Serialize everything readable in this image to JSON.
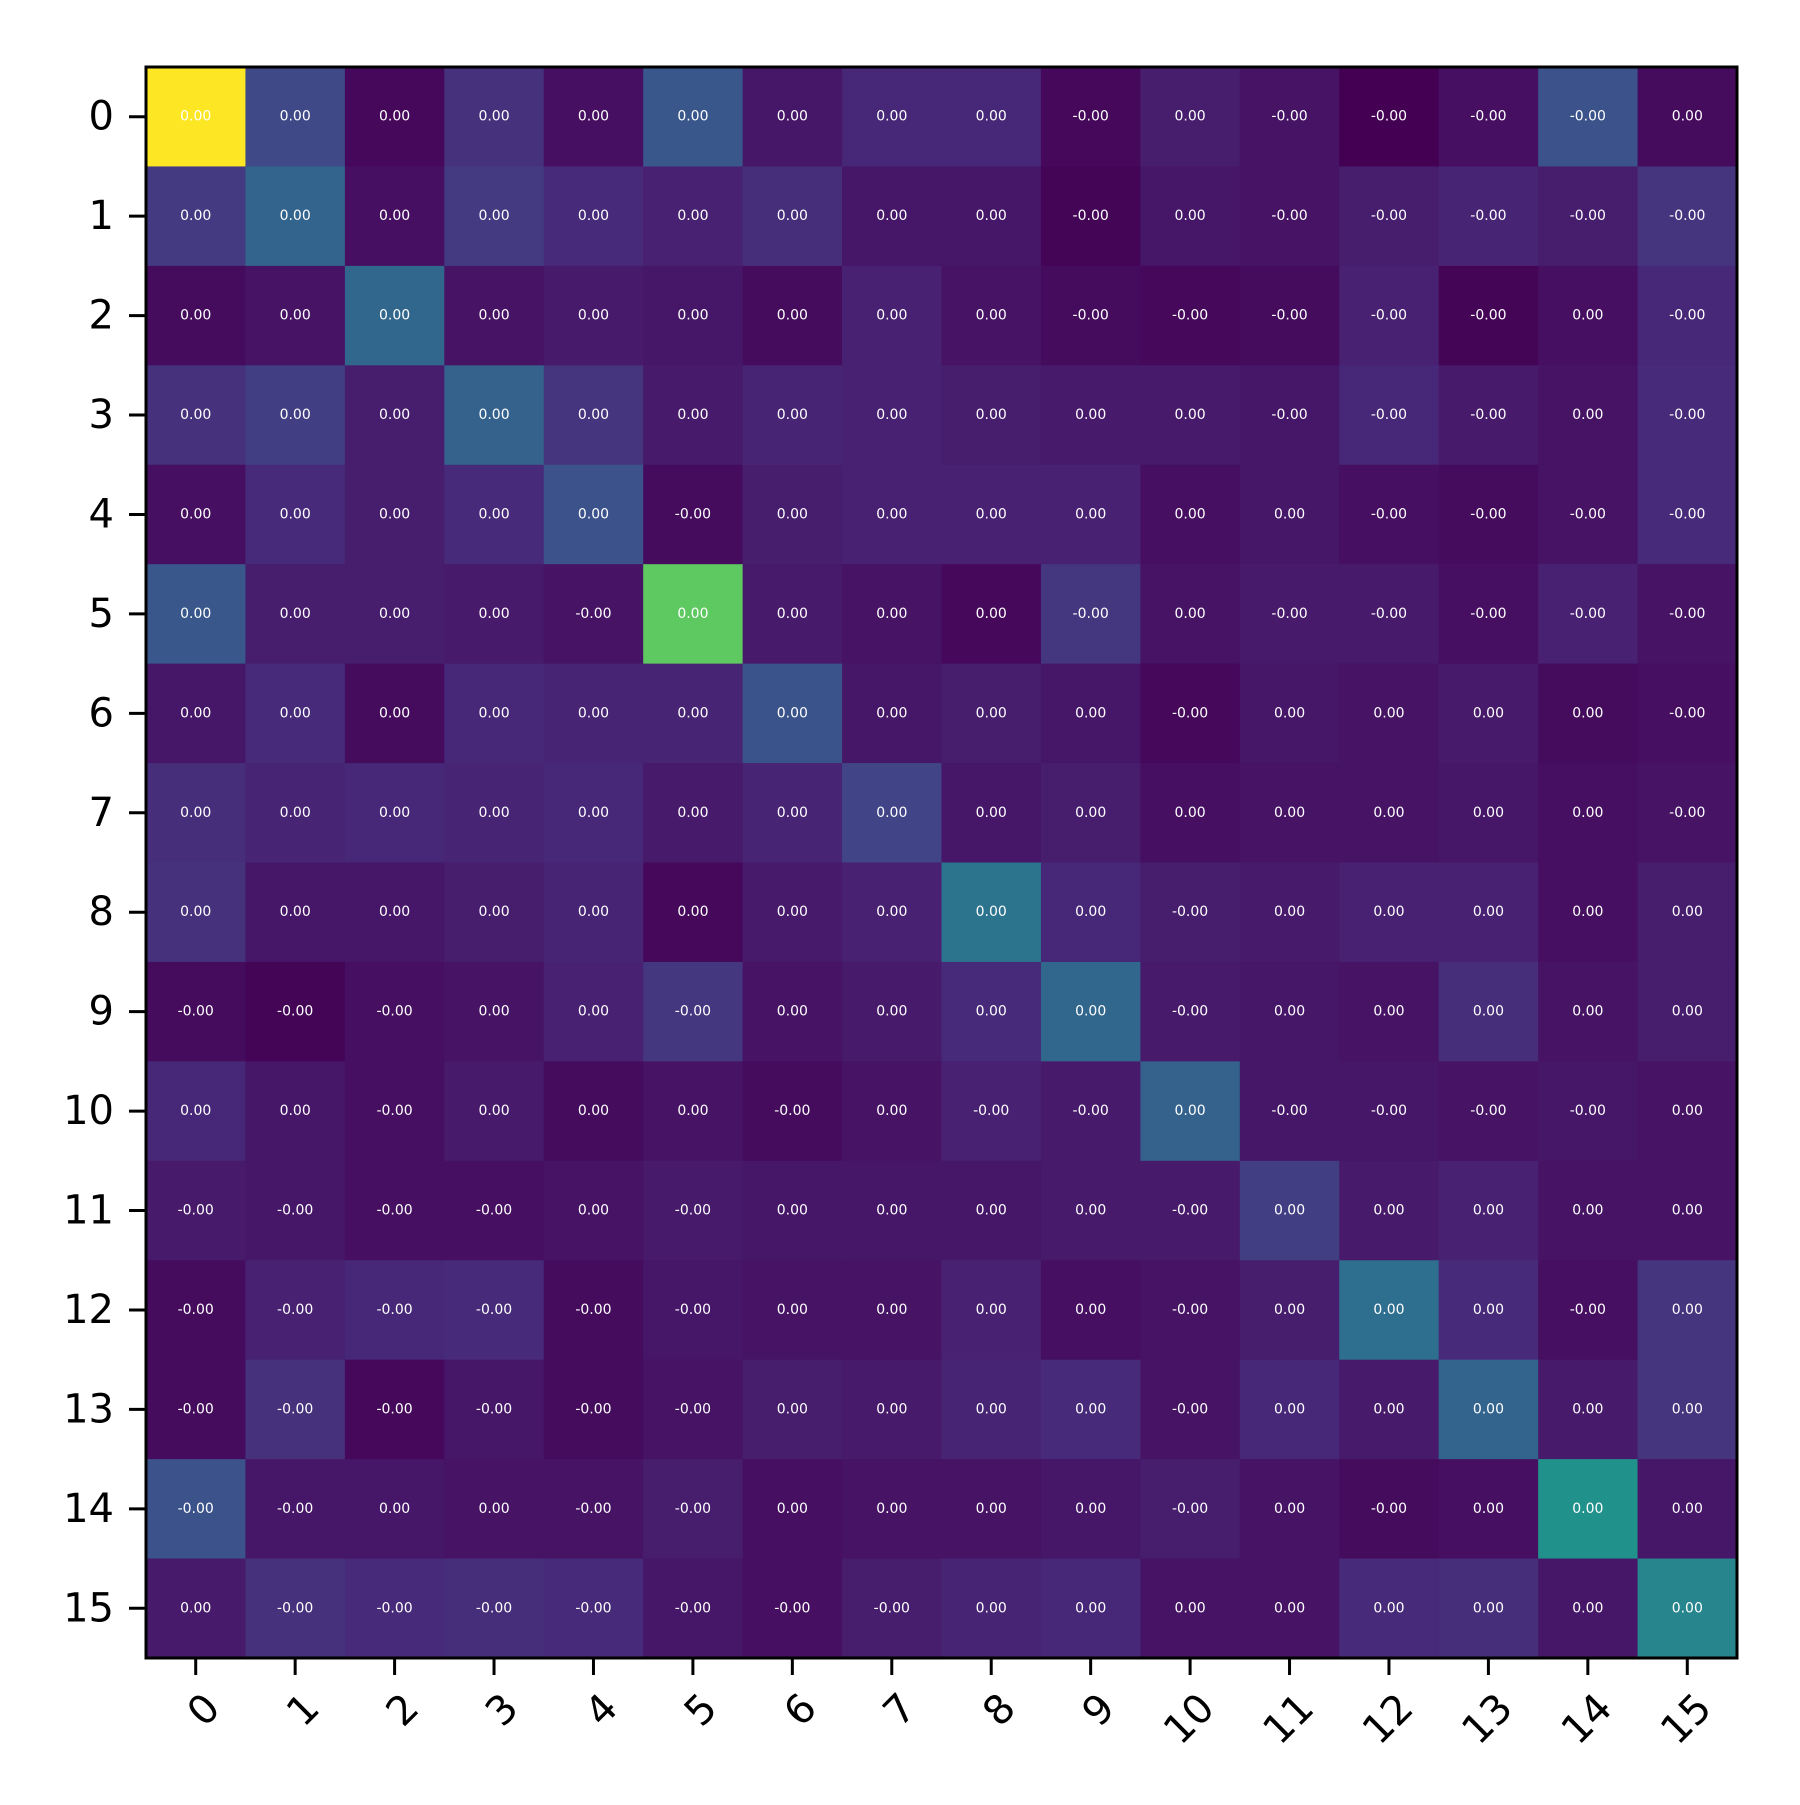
{
  "chart_data": {
    "type": "heatmap",
    "title": "",
    "xlabel": "",
    "ylabel": "",
    "colormap": "viridis",
    "x_categories": [
      "0",
      "1",
      "2",
      "3",
      "4",
      "5",
      "6",
      "7",
      "8",
      "9",
      "10",
      "11",
      "12",
      "13",
      "14",
      "15"
    ],
    "y_categories": [
      "0",
      "1",
      "2",
      "3",
      "4",
      "5",
      "6",
      "7",
      "8",
      "9",
      "10",
      "11",
      "12",
      "13",
      "14",
      "15"
    ],
    "colors": {
      "cell_text": "#ffffff",
      "frame": "#000000",
      "background": "#ffffff"
    },
    "intensity": [
      [
        1.0,
        0.22,
        0.02,
        0.14,
        0.04,
        0.27,
        0.06,
        0.11,
        0.11,
        0.02,
        0.08,
        0.05,
        0.0,
        0.04,
        0.25,
        0.03
      ],
      [
        0.17,
        0.32,
        0.04,
        0.17,
        0.12,
        0.09,
        0.13,
        0.06,
        0.06,
        0.01,
        0.06,
        0.05,
        0.08,
        0.1,
        0.08,
        0.15
      ],
      [
        0.03,
        0.05,
        0.33,
        0.05,
        0.07,
        0.06,
        0.03,
        0.09,
        0.05,
        0.03,
        0.02,
        0.03,
        0.09,
        0.01,
        0.04,
        0.11
      ],
      [
        0.14,
        0.18,
        0.08,
        0.31,
        0.15,
        0.07,
        0.1,
        0.09,
        0.08,
        0.07,
        0.07,
        0.06,
        0.11,
        0.07,
        0.05,
        0.12
      ],
      [
        0.04,
        0.12,
        0.08,
        0.12,
        0.25,
        0.03,
        0.08,
        0.09,
        0.09,
        0.09,
        0.04,
        0.06,
        0.04,
        0.03,
        0.05,
        0.12
      ],
      [
        0.27,
        0.08,
        0.08,
        0.07,
        0.05,
        0.75,
        0.07,
        0.05,
        0.02,
        0.16,
        0.05,
        0.07,
        0.07,
        0.04,
        0.09,
        0.05
      ],
      [
        0.06,
        0.12,
        0.03,
        0.11,
        0.1,
        0.1,
        0.26,
        0.06,
        0.08,
        0.06,
        0.02,
        0.06,
        0.05,
        0.07,
        0.03,
        0.04
      ],
      [
        0.13,
        0.1,
        0.11,
        0.1,
        0.11,
        0.07,
        0.1,
        0.2,
        0.06,
        0.08,
        0.04,
        0.05,
        0.05,
        0.06,
        0.04,
        0.05
      ],
      [
        0.14,
        0.06,
        0.06,
        0.08,
        0.1,
        0.02,
        0.07,
        0.09,
        0.38,
        0.11,
        0.08,
        0.07,
        0.09,
        0.09,
        0.04,
        0.08
      ],
      [
        0.03,
        0.01,
        0.04,
        0.05,
        0.09,
        0.16,
        0.05,
        0.07,
        0.12,
        0.33,
        0.07,
        0.06,
        0.05,
        0.13,
        0.05,
        0.08
      ],
      [
        0.11,
        0.06,
        0.04,
        0.07,
        0.03,
        0.05,
        0.03,
        0.05,
        0.09,
        0.07,
        0.31,
        0.06,
        0.06,
        0.05,
        0.06,
        0.05
      ],
      [
        0.07,
        0.06,
        0.04,
        0.04,
        0.05,
        0.07,
        0.06,
        0.06,
        0.06,
        0.07,
        0.07,
        0.18,
        0.07,
        0.09,
        0.05,
        0.05
      ],
      [
        0.03,
        0.09,
        0.11,
        0.12,
        0.03,
        0.06,
        0.05,
        0.05,
        0.09,
        0.04,
        0.05,
        0.08,
        0.36,
        0.12,
        0.04,
        0.15
      ],
      [
        0.03,
        0.14,
        0.02,
        0.06,
        0.03,
        0.05,
        0.08,
        0.07,
        0.1,
        0.12,
        0.05,
        0.11,
        0.07,
        0.32,
        0.07,
        0.15
      ],
      [
        0.25,
        0.06,
        0.06,
        0.05,
        0.05,
        0.08,
        0.04,
        0.05,
        0.05,
        0.06,
        0.08,
        0.05,
        0.03,
        0.04,
        0.5,
        0.06
      ],
      [
        0.07,
        0.14,
        0.12,
        0.13,
        0.12,
        0.06,
        0.04,
        0.08,
        0.1,
        0.11,
        0.05,
        0.05,
        0.12,
        0.13,
        0.06,
        0.45
      ]
    ],
    "labels": [
      [
        "0.00",
        "0.00",
        "0.00",
        "0.00",
        "0.00",
        "0.00",
        "0.00",
        "0.00",
        "0.00",
        "-0.00",
        "0.00",
        "-0.00",
        "-0.00",
        "-0.00",
        "-0.00",
        "0.00"
      ],
      [
        "0.00",
        "0.00",
        "0.00",
        "0.00",
        "0.00",
        "0.00",
        "0.00",
        "0.00",
        "0.00",
        "-0.00",
        "0.00",
        "-0.00",
        "-0.00",
        "-0.00",
        "-0.00",
        "-0.00"
      ],
      [
        "0.00",
        "0.00",
        "0.00",
        "0.00",
        "0.00",
        "0.00",
        "0.00",
        "0.00",
        "0.00",
        "-0.00",
        "-0.00",
        "-0.00",
        "-0.00",
        "-0.00",
        "0.00",
        "-0.00"
      ],
      [
        "0.00",
        "0.00",
        "0.00",
        "0.00",
        "0.00",
        "0.00",
        "0.00",
        "0.00",
        "0.00",
        "0.00",
        "0.00",
        "-0.00",
        "-0.00",
        "-0.00",
        "0.00",
        "-0.00"
      ],
      [
        "0.00",
        "0.00",
        "0.00",
        "0.00",
        "0.00",
        "-0.00",
        "0.00",
        "0.00",
        "0.00",
        "0.00",
        "0.00",
        "0.00",
        "-0.00",
        "-0.00",
        "-0.00",
        "-0.00"
      ],
      [
        "0.00",
        "0.00",
        "0.00",
        "0.00",
        "-0.00",
        "0.00",
        "0.00",
        "0.00",
        "0.00",
        "-0.00",
        "0.00",
        "-0.00",
        "-0.00",
        "-0.00",
        "-0.00",
        "-0.00"
      ],
      [
        "0.00",
        "0.00",
        "0.00",
        "0.00",
        "0.00",
        "0.00",
        "0.00",
        "0.00",
        "0.00",
        "0.00",
        "-0.00",
        "0.00",
        "0.00",
        "0.00",
        "0.00",
        "-0.00"
      ],
      [
        "0.00",
        "0.00",
        "0.00",
        "0.00",
        "0.00",
        "0.00",
        "0.00",
        "0.00",
        "0.00",
        "0.00",
        "0.00",
        "0.00",
        "0.00",
        "0.00",
        "0.00",
        "-0.00"
      ],
      [
        "0.00",
        "0.00",
        "0.00",
        "0.00",
        "0.00",
        "0.00",
        "0.00",
        "0.00",
        "0.00",
        "0.00",
        "-0.00",
        "0.00",
        "0.00",
        "0.00",
        "0.00",
        "0.00"
      ],
      [
        "-0.00",
        "-0.00",
        "-0.00",
        "0.00",
        "0.00",
        "-0.00",
        "0.00",
        "0.00",
        "0.00",
        "0.00",
        "-0.00",
        "0.00",
        "0.00",
        "0.00",
        "0.00",
        "0.00"
      ],
      [
        "0.00",
        "0.00",
        "-0.00",
        "0.00",
        "0.00",
        "0.00",
        "-0.00",
        "0.00",
        "-0.00",
        "-0.00",
        "0.00",
        "-0.00",
        "-0.00",
        "-0.00",
        "-0.00",
        "0.00"
      ],
      [
        "-0.00",
        "-0.00",
        "-0.00",
        "-0.00",
        "0.00",
        "-0.00",
        "0.00",
        "0.00",
        "0.00",
        "0.00",
        "-0.00",
        "0.00",
        "0.00",
        "0.00",
        "0.00",
        "0.00"
      ],
      [
        "-0.00",
        "-0.00",
        "-0.00",
        "-0.00",
        "-0.00",
        "-0.00",
        "0.00",
        "0.00",
        "0.00",
        "0.00",
        "-0.00",
        "0.00",
        "0.00",
        "0.00",
        "-0.00",
        "0.00"
      ],
      [
        "-0.00",
        "-0.00",
        "-0.00",
        "-0.00",
        "-0.00",
        "-0.00",
        "0.00",
        "0.00",
        "0.00",
        "0.00",
        "-0.00",
        "0.00",
        "0.00",
        "0.00",
        "0.00",
        "0.00"
      ],
      [
        "-0.00",
        "-0.00",
        "0.00",
        "0.00",
        "-0.00",
        "-0.00",
        "0.00",
        "0.00",
        "0.00",
        "0.00",
        "-0.00",
        "0.00",
        "-0.00",
        "0.00",
        "0.00",
        "0.00"
      ],
      [
        "0.00",
        "-0.00",
        "-0.00",
        "-0.00",
        "-0.00",
        "-0.00",
        "-0.00",
        "-0.00",
        "0.00",
        "0.00",
        "0.00",
        "0.00",
        "0.00",
        "0.00",
        "0.00",
        "0.00"
      ]
    ]
  }
}
